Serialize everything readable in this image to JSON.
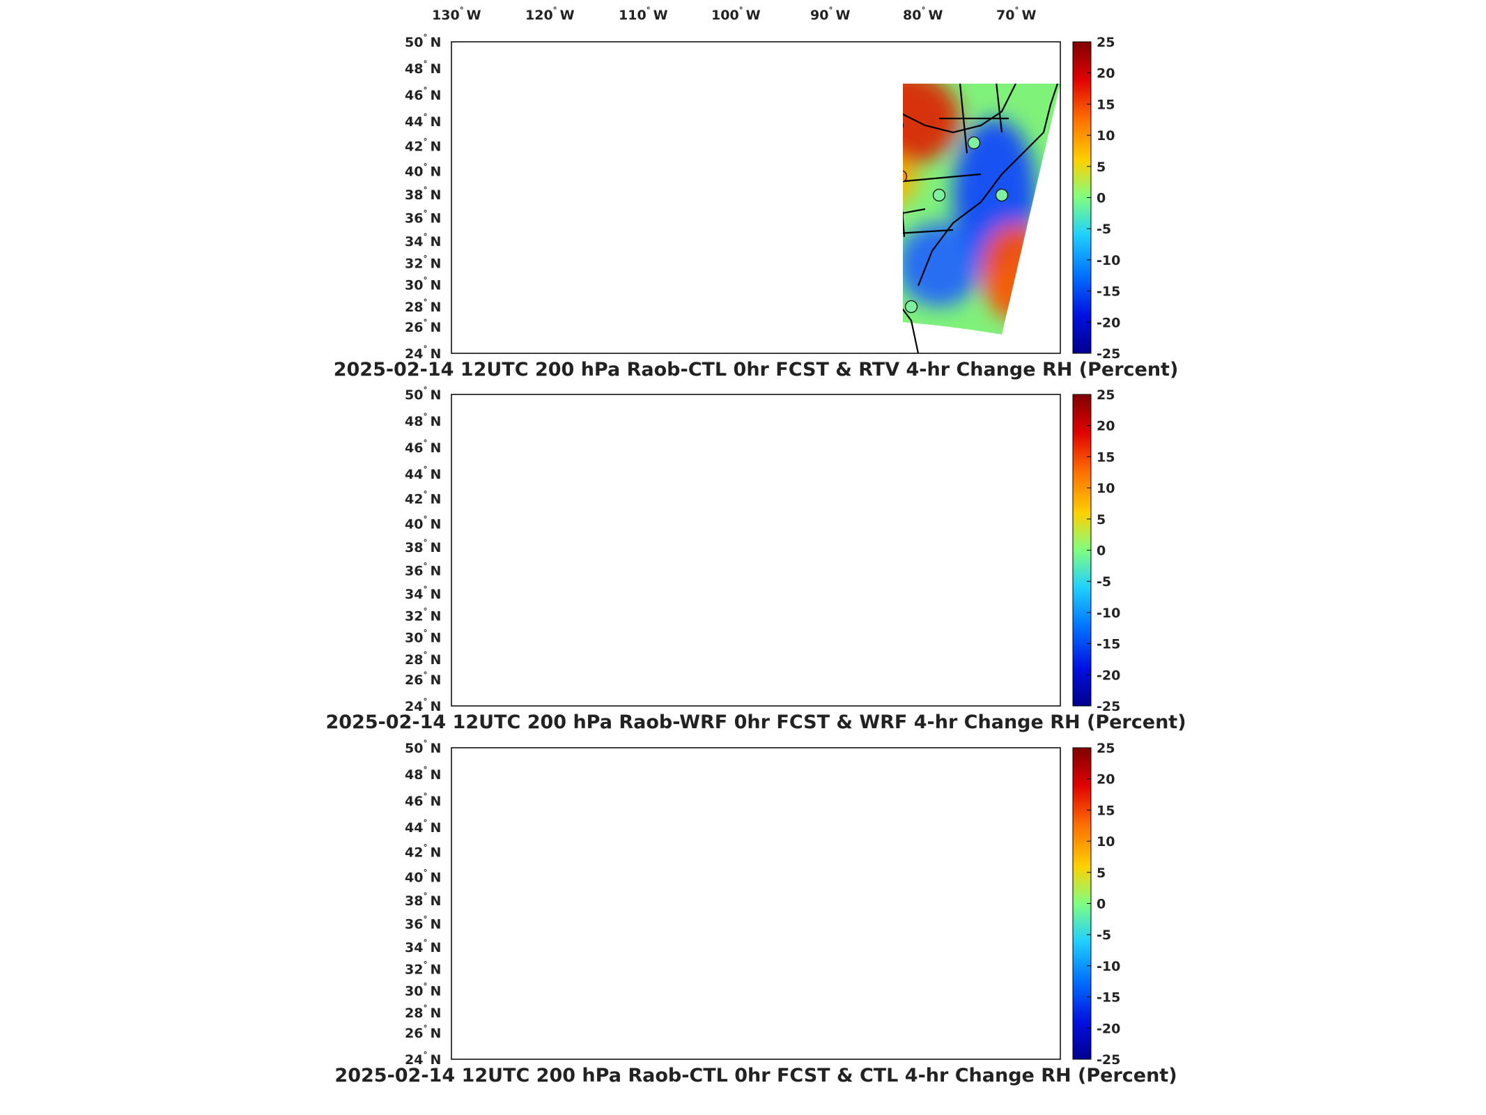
{
  "top_axis": {
    "longitude_numbers": [
      "130",
      "120",
      "110",
      "100",
      "90",
      "80",
      "70"
    ],
    "degree_sign": "°",
    "west_letter": "W"
  },
  "left_axis": {
    "latitude_numbers": [
      "50",
      "48",
      "46",
      "44",
      "42",
      "40",
      "38",
      "36",
      "34",
      "32",
      "30",
      "28",
      "26",
      "24"
    ],
    "degree_sign": "°",
    "north_letter": "N"
  },
  "colorbar": {
    "tick_labels": [
      "25",
      "20",
      "15",
      "10",
      "5",
      "0",
      "-5",
      "-10",
      "-15",
      "-20",
      "-25"
    ],
    "colors": [
      "#7f0000",
      "#d40000",
      "#ff4a00",
      "#ff9400",
      "#ffe000",
      "#80ff80",
      "#20d8f0",
      "#0094ff",
      "#003cff",
      "#0000d0",
      "#00008f"
    ]
  },
  "panels": [
    {
      "title": "2025-02-14 12UTC 200 hPa Raob-CTL 0hr FCST & RTV 4-hr Change RH (Percent)"
    },
    {
      "title": "2025-02-14 12UTC 200 hPa Raob-WRF 0hr FCST & WRF 4-hr Change RH (Percent)"
    },
    {
      "title": "2025-02-14 12UTC 200 hPa Raob-CTL 0hr FCST & CTL 4-hr Change RH (Percent)"
    }
  ],
  "legend_value_range": [
    -25,
    25
  ]
}
